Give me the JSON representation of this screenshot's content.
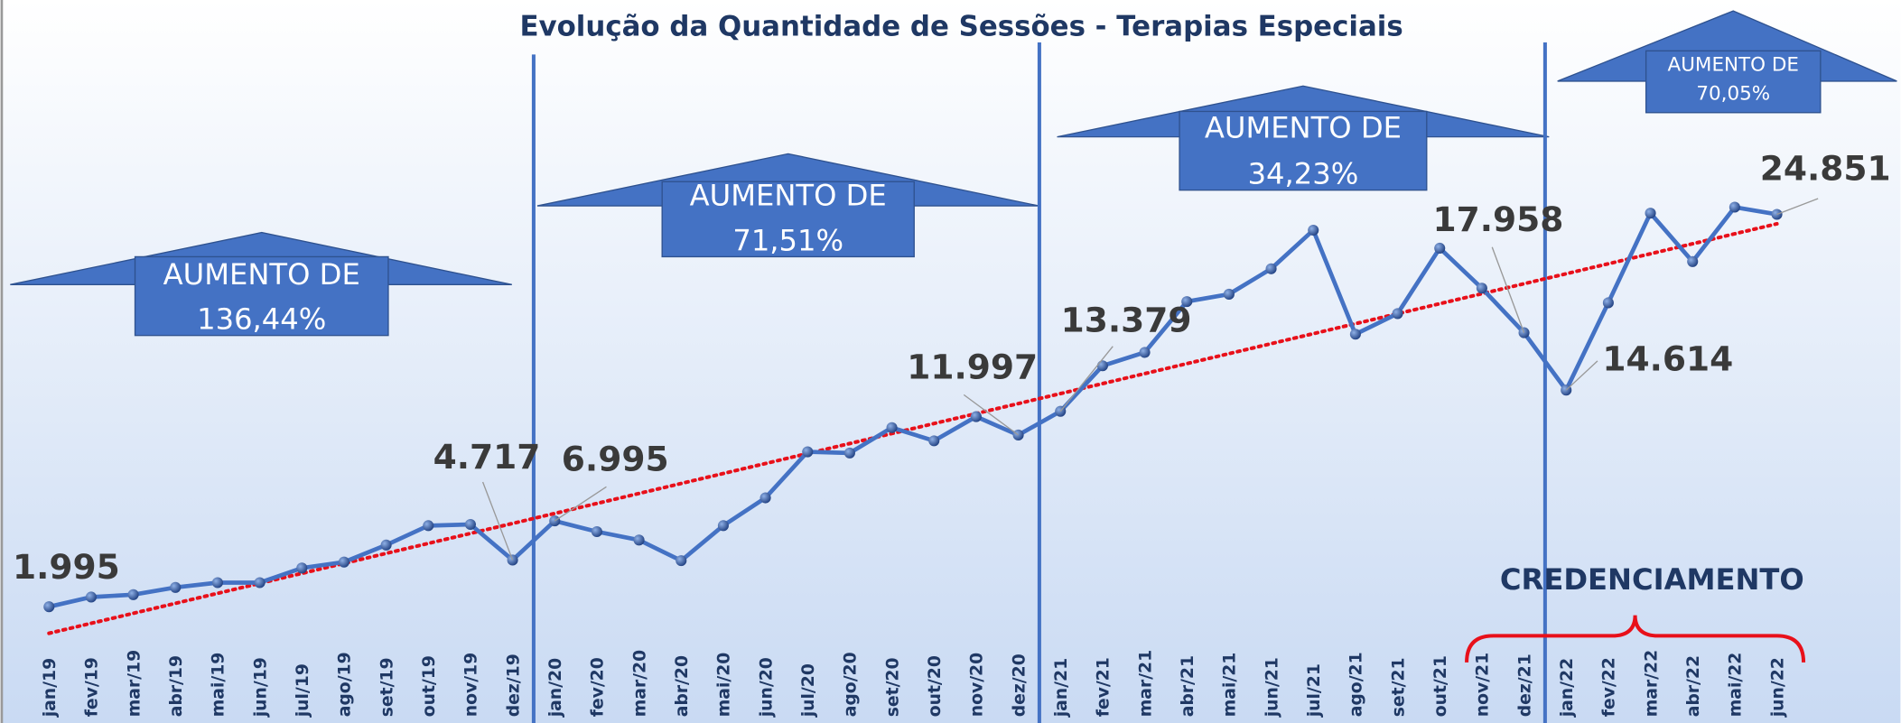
{
  "chart_data": {
    "type": "line",
    "title": "Evolução da Quantidade de Sessões - Terapias Especiais",
    "categories": [
      "jan/19",
      "fev/19",
      "mar/19",
      "abr/19",
      "mai/19",
      "jun/19",
      "jul/19",
      "ago/19",
      "set/19",
      "out/19",
      "nov/19",
      "dez/19",
      "jan/20",
      "fev/20",
      "mar/20",
      "abr/20",
      "mai/20",
      "jun/20",
      "jul/20",
      "ago/20",
      "set/20",
      "out/20",
      "nov/20",
      "dez/20",
      "jan/21",
      "fev/21",
      "mar/21",
      "abr/21",
      "mai/21",
      "jun/21",
      "jul/21",
      "ago/21",
      "set/21",
      "out/21",
      "nov/21",
      "dez/21",
      "jan/22",
      "fev/22",
      "mar/22",
      "abr/22",
      "mai/22",
      "jun/22"
    ],
    "series": [
      {
        "name": "Sessões",
        "color": "#4472c4",
        "values": [
          1995,
          2560,
          2700,
          3120,
          3400,
          3400,
          4250,
          4600,
          5590,
          6720,
          6790,
          4717,
          6995,
          6370,
          5880,
          4680,
          6720,
          8340,
          11020,
          10950,
          12430,
          11660,
          13070,
          11997,
          13379,
          16030,
          16810,
          19770,
          20200,
          21680,
          23930,
          17870,
          19070,
          22880,
          20550,
          17958,
          14614,
          19700,
          24920,
          22100,
          25270,
          24851
        ],
        "value_labels": [
          "1.995",
          null,
          null,
          null,
          null,
          null,
          null,
          null,
          null,
          null,
          null,
          "4.717",
          "6.995",
          null,
          null,
          null,
          null,
          null,
          null,
          null,
          null,
          null,
          null,
          "11.997",
          "13.379",
          null,
          null,
          null,
          null,
          null,
          null,
          null,
          null,
          null,
          null,
          "17.958",
          "14.614",
          null,
          null,
          null,
          null,
          "24.851"
        ]
      }
    ],
    "trendline": {
      "start": 450,
      "end": 24300,
      "color": "#e8101a"
    },
    "ylim": [
      0,
      30000
    ],
    "annotations": [
      {
        "line1": "AUMENTO DE",
        "line2": "136,44%"
      },
      {
        "line1": "AUMENTO DE",
        "line2": "71,51%"
      },
      {
        "line1": "AUMENTO DE",
        "line2": "34,23%"
      },
      {
        "line1": "AUMENTO DE",
        "line2": "70,05%"
      }
    ],
    "credenciamento": "CREDENCIAMENTO"
  }
}
